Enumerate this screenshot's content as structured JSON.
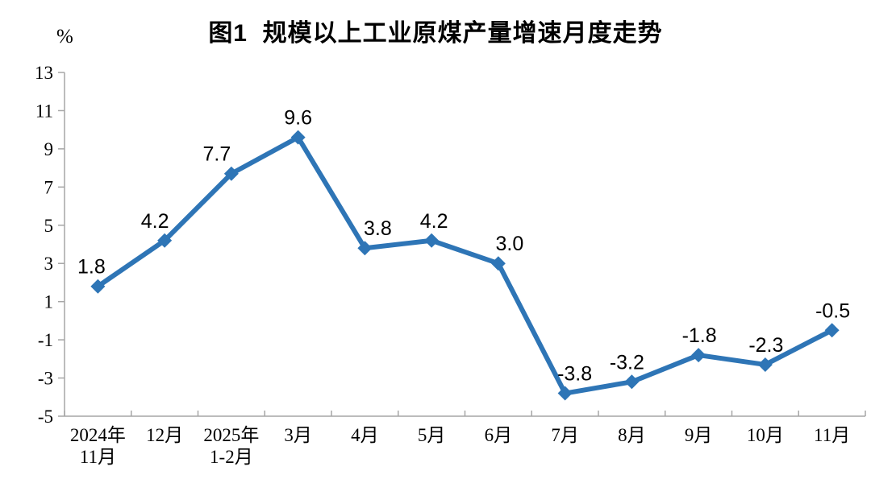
{
  "chart_data": {
    "type": "line",
    "title": "图1  规模以上工业原煤产量增速月度走势",
    "unit_label": "%",
    "xlabel": "",
    "ylabel": "%",
    "categories": [
      "2024年\n11月",
      "12月",
      "2025年\n1-2月",
      "3月",
      "4月",
      "5月",
      "6月",
      "7月",
      "8月",
      "9月",
      "10月",
      "11月"
    ],
    "values": [
      1.8,
      4.2,
      7.7,
      9.6,
      3.8,
      4.2,
      3.0,
      -3.8,
      -3.2,
      -1.8,
      -2.3,
      -0.5
    ],
    "data_labels": [
      "1.8",
      "4.2",
      "7.7",
      "9.6",
      "3.8",
      "4.2",
      "3.0",
      "-3.8",
      "-3.2",
      "-1.8",
      "-2.3",
      "-0.5"
    ],
    "ylim": [
      -5,
      13
    ],
    "yticks": [
      13,
      11,
      9,
      7,
      5,
      3,
      1,
      -1,
      -3,
      -5
    ],
    "grid": false,
    "legend": "none",
    "line_color": "#2E75B6",
    "axis_color": "#A6A6A6",
    "marker": "diamond"
  }
}
